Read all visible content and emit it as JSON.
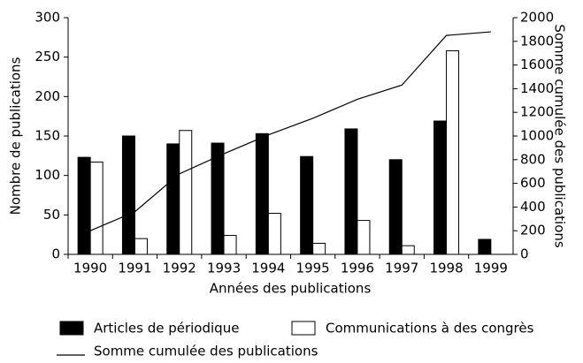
{
  "chart_data": {
    "type": "bar",
    "xlabel": "Années des publications",
    "ylabel": "Nombre de publications",
    "y2label": "Somme cumulée des publications",
    "categories": [
      "1990",
      "1991",
      "1992",
      "1993",
      "1994",
      "1995",
      "1996",
      "1997",
      "1998",
      "1999"
    ],
    "series": [
      {
        "name": "Articles de périodique",
        "color": "#000000",
        "values": [
          123,
          150,
          140,
          141,
          153,
          124,
          159,
          120,
          169,
          19
        ]
      },
      {
        "name": "Communications à des congrès",
        "color": "#ffffff",
        "values": [
          117,
          20,
          157,
          24,
          52,
          14,
          43,
          11,
          258,
          null
        ]
      },
      {
        "name": "Somme cumulée des publications",
        "color": "#000000",
        "type": "line",
        "axis": "y2",
        "values": [
          200,
          360,
          680,
          850,
          1010,
          1150,
          1310,
          1430,
          1850,
          1880
        ]
      }
    ],
    "ylim": [
      0,
      300
    ],
    "yticks": [
      0,
      50,
      100,
      150,
      200,
      250,
      300
    ],
    "y2lim": [
      0,
      2000
    ],
    "y2ticks": [
      0,
      200,
      400,
      600,
      800,
      1000,
      1200,
      1400,
      1600,
      1800,
      2000
    ],
    "grid": false
  }
}
